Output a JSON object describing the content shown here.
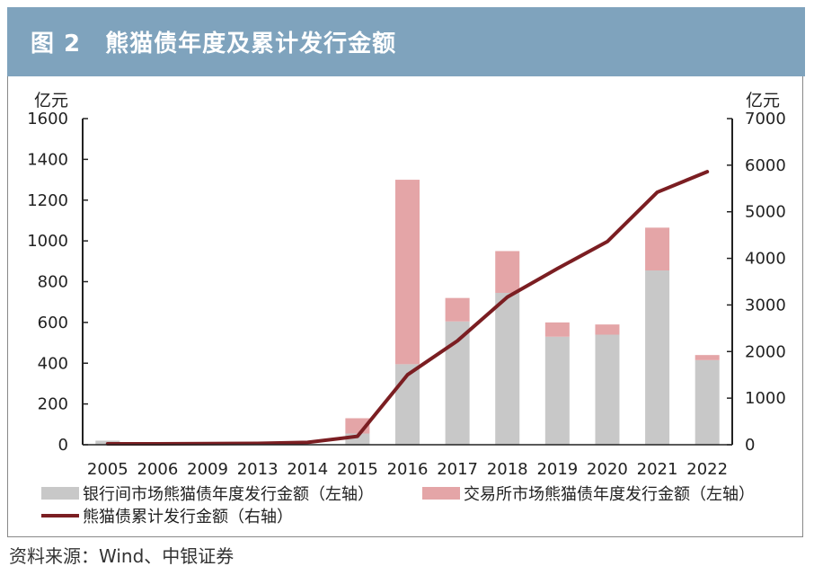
{
  "header": {
    "title": "图 2　熊猫债年度及累计发行金额"
  },
  "source": "资料来源：Wind、中银证券",
  "colors": {
    "title_bg": "#7fa3bd",
    "bank": "#c8c8c8",
    "exchange": "#e4a5a7",
    "line": "#7b1e22"
  },
  "chart_data": {
    "type": "bar",
    "stacked": true,
    "categories": [
      "2005",
      "2006",
      "2009",
      "2013",
      "2014",
      "2015",
      "2016",
      "2017",
      "2018",
      "2019",
      "2020",
      "2021",
      "2022"
    ],
    "series": [
      {
        "name": "银行间市场熊猫债年度发行金额（左轴）",
        "axis": "left",
        "type": "bar",
        "values": [
          20,
          0,
          0,
          0,
          0,
          55,
          395,
          605,
          745,
          530,
          540,
          855,
          415
        ]
      },
      {
        "name": "交易所市场熊猫债年度发行金额（左轴）",
        "axis": "left",
        "type": "bar",
        "values": [
          0,
          0,
          0,
          0,
          0,
          75,
          905,
          115,
          205,
          70,
          50,
          210,
          25
        ]
      },
      {
        "name": "熊猫债累计发行金额（右轴）",
        "axis": "right",
        "type": "line",
        "values": [
          20,
          20,
          25,
          30,
          50,
          180,
          1500,
          2230,
          3170,
          3780,
          4360,
          5420,
          5860
        ]
      }
    ],
    "y_left": {
      "label": "亿元",
      "range": [
        0,
        1600
      ],
      "ticks": [
        0,
        200,
        400,
        600,
        800,
        1000,
        1200,
        1400,
        1600
      ]
    },
    "y_right": {
      "label": "亿元",
      "range": [
        0,
        7000
      ],
      "ticks": [
        0,
        1000,
        2000,
        3000,
        4000,
        5000,
        6000,
        7000
      ]
    },
    "legend": [
      "银行间市场熊猫债年度发行金额（左轴）",
      "交易所市场熊猫债年度发行金额（左轴）",
      "熊猫债累计发行金额（右轴）"
    ]
  }
}
